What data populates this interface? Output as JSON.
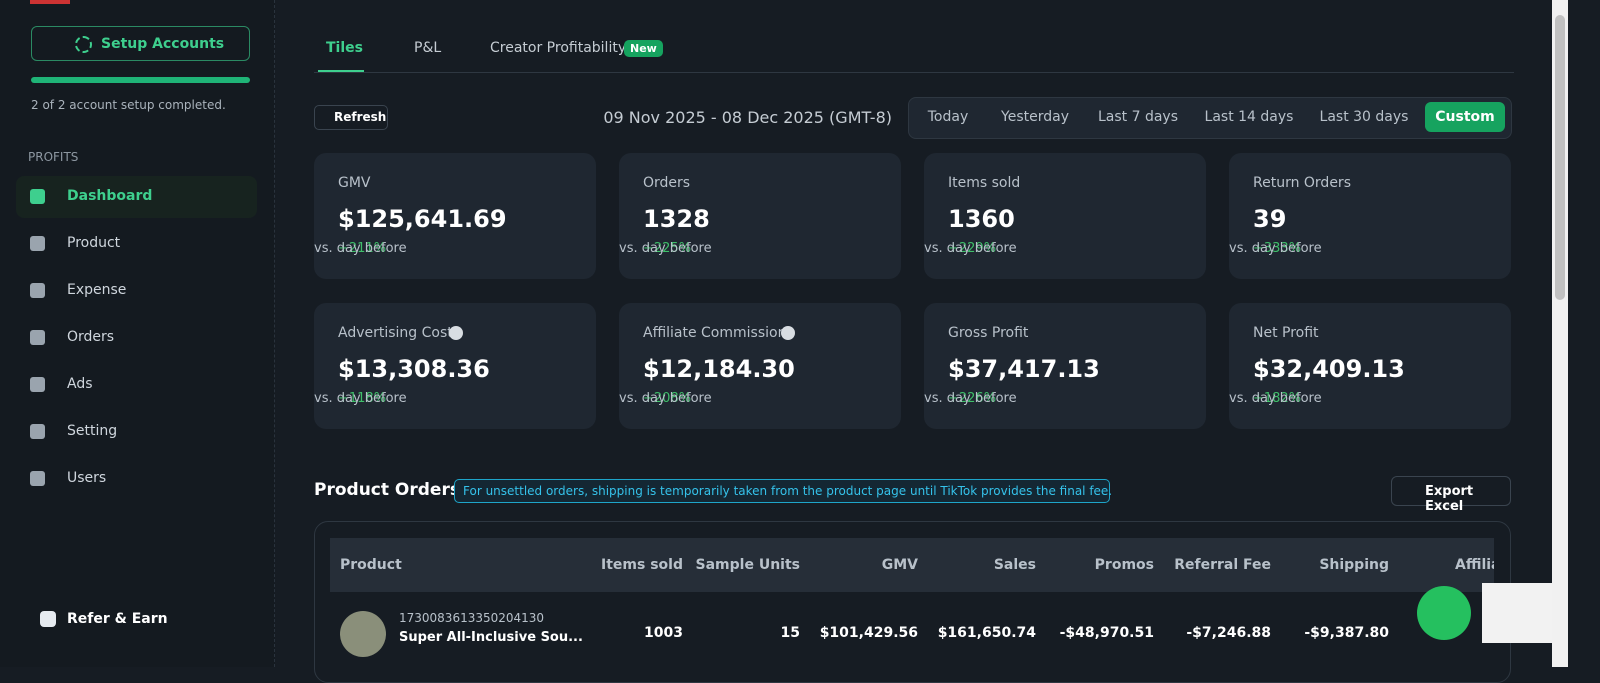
{
  "sidebar": {
    "setup_button": "Setup Accounts",
    "setup_status": "2 of 2 account setup completed.",
    "section": "PROFITS",
    "nav": [
      "Dashboard",
      "Product",
      "Expense",
      "Orders",
      "Ads",
      "Setting",
      "Users"
    ],
    "refer": "Refer & Earn"
  },
  "tabs": {
    "items": [
      "Tiles",
      "P&L",
      "Creator Profitability"
    ],
    "badge": "New"
  },
  "toolbar": {
    "refresh": "Refresh",
    "date_range": "09 Nov 2025 - 08 Dec 2025 (GMT-8)",
    "ranges": [
      "Today",
      "Yesterday",
      "Last 7 days",
      "Last 14 days",
      "Last 30 days",
      "Custom"
    ]
  },
  "tiles": [
    {
      "label": "GMV",
      "value": "$125,641.69",
      "change": "+211%",
      "suffix": "vs. day before"
    },
    {
      "label": "Orders",
      "value": "1328",
      "change": "+225%",
      "suffix": "vs. day before"
    },
    {
      "label": "Items sold",
      "value": "1360",
      "change": "+229%",
      "suffix": "vs. day before"
    },
    {
      "label": "Return Orders",
      "value": "39",
      "change": "+333%",
      "suffix": "vs. day before"
    },
    {
      "label": "Advertising Cost",
      "value": "$13,308.36",
      "change": "+118%",
      "suffix": "vs. day before"
    },
    {
      "label": "Affiliate Commission",
      "value": "$12,184.30",
      "change": "+208%",
      "suffix": "vs. day before"
    },
    {
      "label": "Gross Profit",
      "value": "$37,417.13",
      "change": "+226%",
      "suffix": "vs. day before"
    },
    {
      "label": "Net Profit",
      "value": "$32,409.13",
      "change": "+182%",
      "suffix": "vs. day before"
    }
  ],
  "product_orders": {
    "title": "Product Orders",
    "note": "For unsettled orders, shipping is temporarily taken from the product page until TikTok provides the final fee.",
    "export": "Export Excel",
    "table": {
      "headers": [
        "Product",
        "Items sold",
        "Sample Units",
        "GMV",
        "Sales",
        "Promos",
        "Referral Fee",
        "Shipping",
        "Affiliate"
      ],
      "rows": [
        {
          "id": "1730083613350204130",
          "name": "Super All-Inclusive Sou...",
          "cells": [
            "1003",
            "15",
            "$101,429.56",
            "$161,650.74",
            "-$48,970.51",
            "-$7,246.88",
            "-$9,387.80"
          ]
        }
      ]
    }
  }
}
